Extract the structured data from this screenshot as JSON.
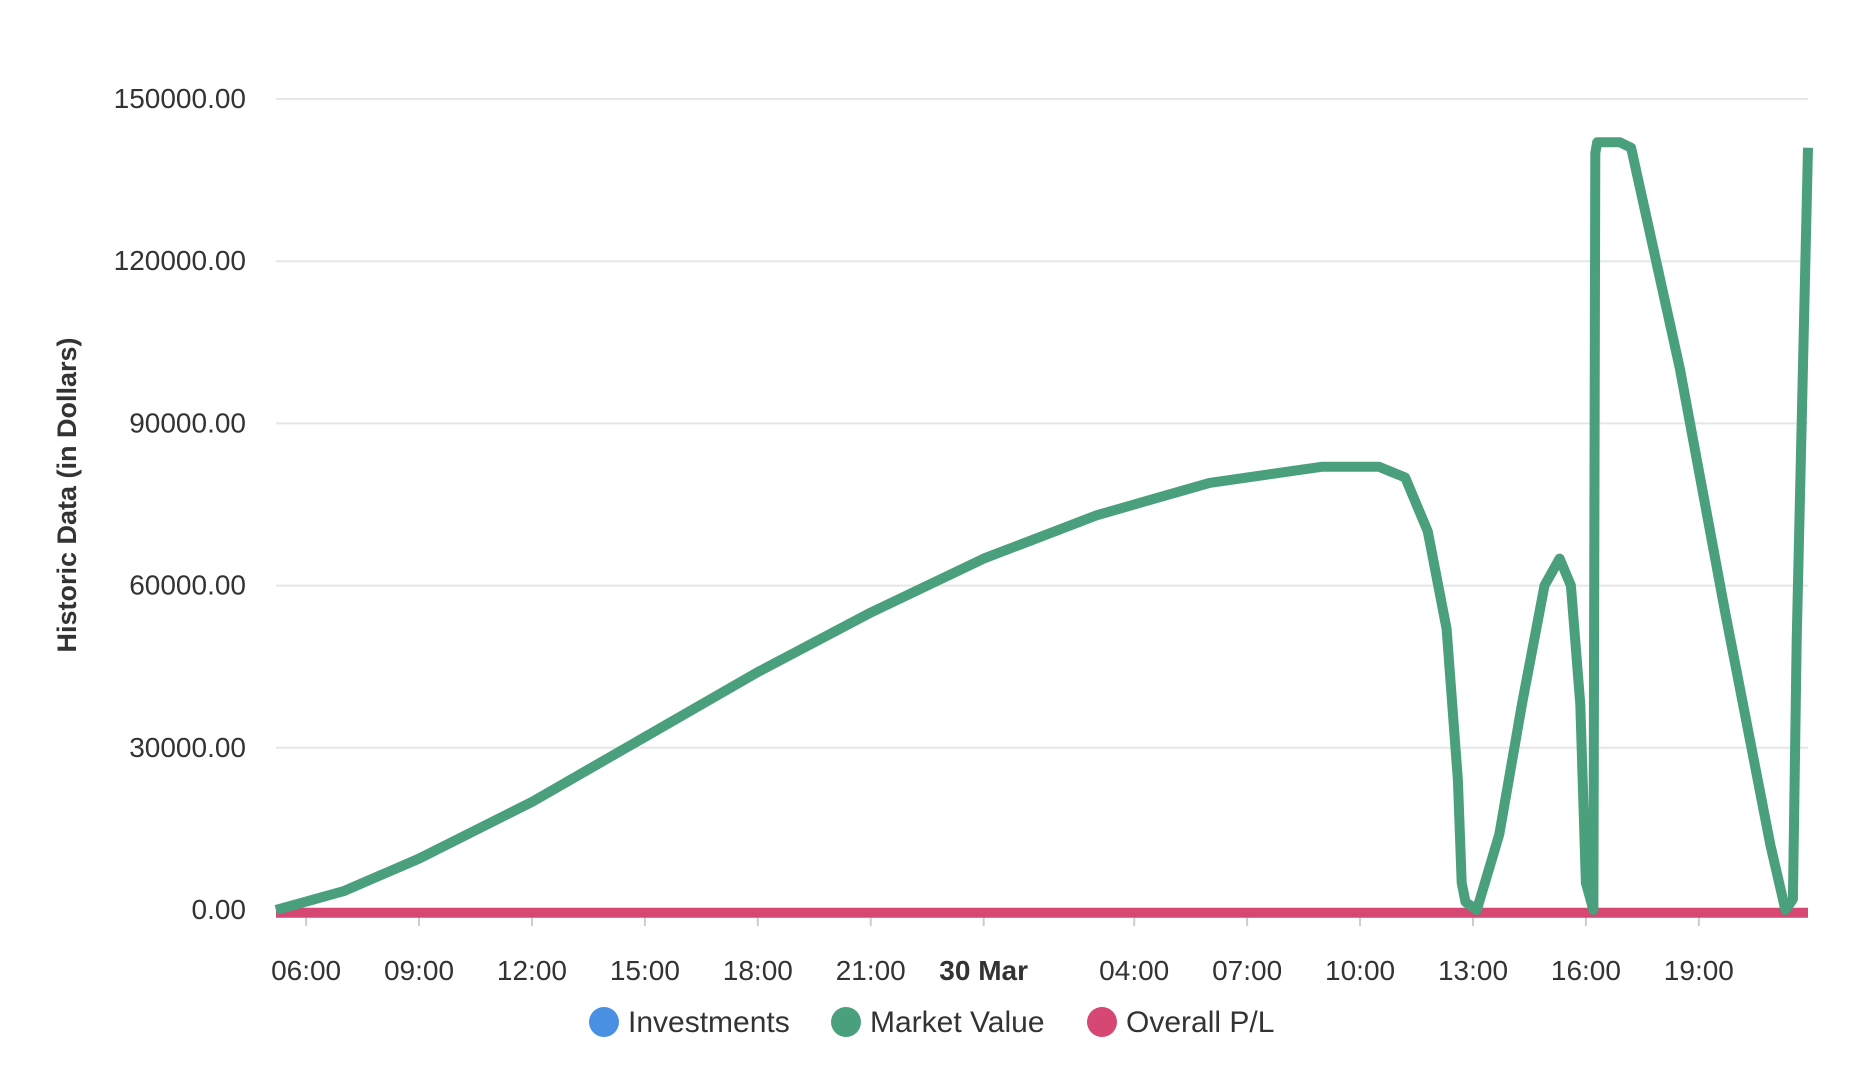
{
  "chart_data": {
    "type": "line",
    "ylabel": "Historic Data (in Dollars)",
    "ylim": [
      0,
      150000
    ],
    "y_ticks": [
      "0.00",
      "30000.00",
      "60000.00",
      "90000.00",
      "120000.00",
      "150000.00"
    ],
    "y_tick_values": [
      0,
      30000,
      60000,
      90000,
      120000,
      150000
    ],
    "x_unit": "hours since 29 Mar 00:00",
    "xlim": [
      5.2,
      45.9
    ],
    "x_ticks": [
      {
        "label": "06:00",
        "value": 6
      },
      {
        "label": "09:00",
        "value": 9
      },
      {
        "label": "12:00",
        "value": 12
      },
      {
        "label": "15:00",
        "value": 15
      },
      {
        "label": "18:00",
        "value": 18
      },
      {
        "label": "21:00",
        "value": 21
      },
      {
        "label": "30 Mar",
        "value": 24,
        "bold": true
      },
      {
        "label": "04:00",
        "value": 28
      },
      {
        "label": "07:00",
        "value": 31
      },
      {
        "label": "10:00",
        "value": 34
      },
      {
        "label": "13:00",
        "value": 37
      },
      {
        "label": "16:00",
        "value": 40
      },
      {
        "label": "19:00",
        "value": 43
      }
    ],
    "grid": true,
    "legend_position": "bottom-center",
    "series": [
      {
        "name": "Investments",
        "color": "#4a90e2",
        "x": [],
        "values": []
      },
      {
        "name": "Market Value",
        "color": "#4a9f7d",
        "x": [
          5.2,
          7,
          9,
          12,
          15,
          18,
          21,
          24,
          27,
          30,
          33,
          34.5,
          35.2,
          35.8,
          36.3,
          36.6,
          36.7,
          36.8,
          37.1,
          37.7,
          38.3,
          38.9,
          39.3,
          39.6,
          39.85,
          40.0,
          40.2,
          40.25,
          40.3,
          40.9,
          41.2,
          42.5,
          43.7,
          44.9,
          45.3,
          45.5,
          45.6,
          45.9
        ],
        "values": [
          0,
          3500,
          9500,
          20000,
          32000,
          44000,
          55000,
          65000,
          73000,
          79000,
          82000,
          82000,
          80000,
          70000,
          52000,
          24000,
          5000,
          1500,
          0,
          14000,
          38000,
          60000,
          65000,
          60000,
          38000,
          5000,
          0,
          140000,
          142000,
          142000,
          141000,
          100000,
          55000,
          12000,
          0,
          2000,
          50000,
          141000
        ]
      },
      {
        "name": "Overall P/L",
        "color": "#d64773",
        "x": [
          5.2,
          45.9
        ],
        "values": [
          -500,
          -500
        ]
      }
    ]
  }
}
